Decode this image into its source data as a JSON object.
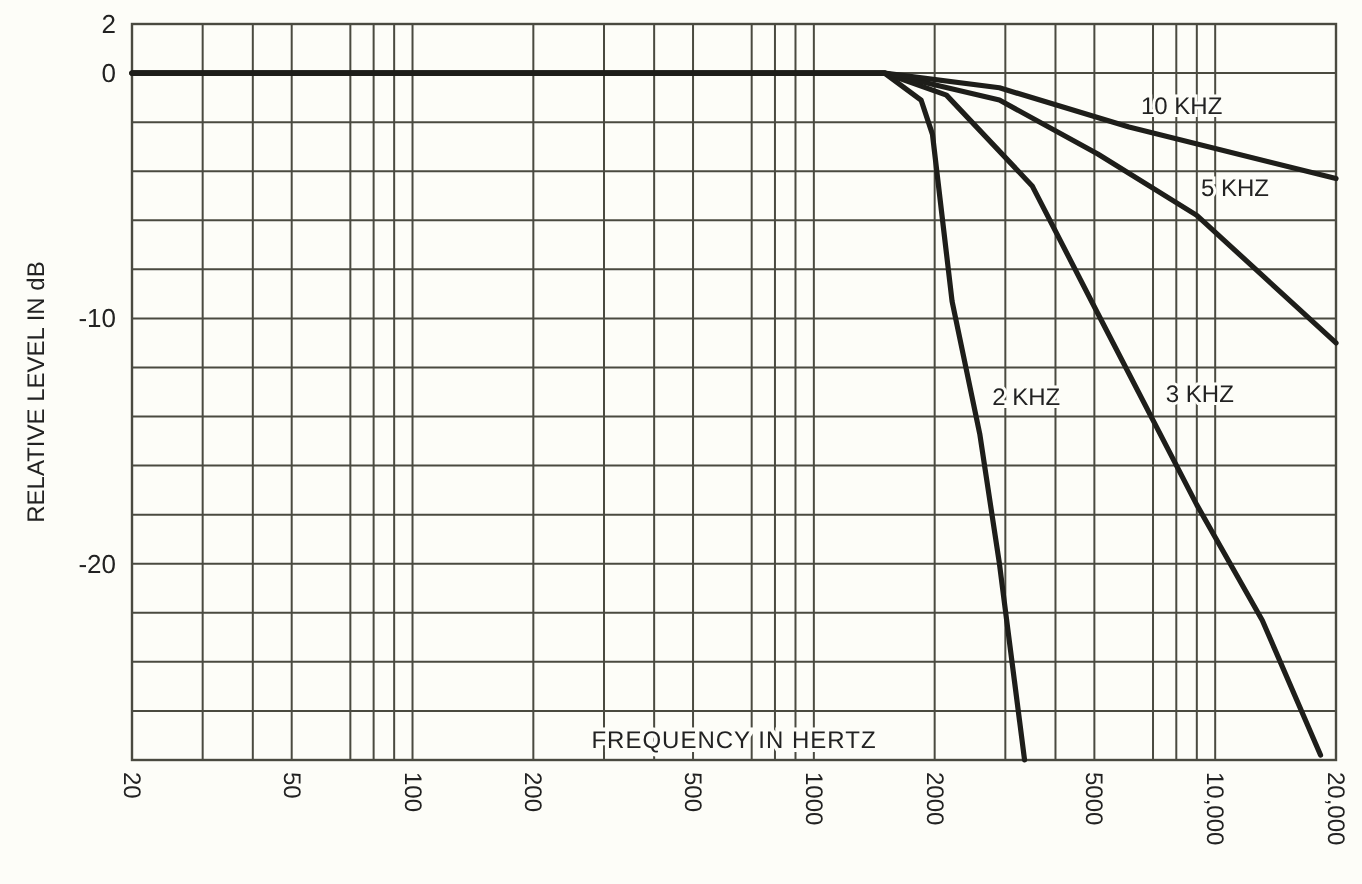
{
  "chart_data": {
    "type": "line",
    "xlabel": "FREQUENCY IN HERTZ",
    "ylabel": "RELATIVE LEVEL IN dB",
    "log": "x",
    "xlim": [
      20,
      20000
    ],
    "ylim": [
      -28,
      2
    ],
    "xticks": [
      20,
      {
        "value": 30,
        "label": null
      },
      {
        "value": 40,
        "label": null
      },
      50,
      {
        "value": 70,
        "label": null
      },
      {
        "value": 80,
        "label": null
      },
      {
        "value": 90,
        "label": null
      },
      100,
      200,
      {
        "value": 300,
        "label": null
      },
      {
        "value": 400,
        "label": null
      },
      500,
      {
        "value": 700,
        "label": null
      },
      {
        "value": 800,
        "label": null
      },
      {
        "value": 900,
        "label": null
      },
      1000,
      2000,
      {
        "value": 3000,
        "label": null
      },
      {
        "value": 4000,
        "label": null
      },
      5000,
      {
        "value": 7000,
        "label": null
      },
      {
        "value": 8000,
        "label": null
      },
      {
        "value": 9000,
        "label": null
      },
      {
        "value": 10000,
        "label": "10,000"
      },
      {
        "value": 20000,
        "label": "20,000"
      }
    ],
    "yticks": [
      2,
      0,
      {
        "value": -2,
        "label": null
      },
      {
        "value": -4,
        "label": null
      },
      {
        "value": -6,
        "label": null
      },
      {
        "value": -8,
        "label": null
      },
      -10,
      {
        "value": -12,
        "label": null
      },
      {
        "value": -14,
        "label": null
      },
      {
        "value": -16,
        "label": null
      },
      {
        "value": -18,
        "label": null
      },
      -20,
      {
        "value": -22,
        "label": null
      },
      {
        "value": -24,
        "label": null
      },
      {
        "value": -26,
        "label": null
      },
      {
        "value": -28,
        "label": null
      }
    ],
    "grid": true,
    "marker": "none",
    "line_style": "solid",
    "series": [
      {
        "name": "2 KHZ",
        "color": "#1e1e1a",
        "x": [
          20,
          1000,
          1500,
          1850,
          1975,
          2210,
          2590,
          2900,
          3350
        ],
        "values": [
          0,
          0,
          0,
          -1.1,
          -2.5,
          -9.3,
          -14.7,
          -20,
          -28
        ]
      },
      {
        "name": "3 KHZ",
        "color": "#1e1e1a",
        "x": [
          20,
          1000,
          1500,
          2140,
          3500,
          5100,
          9000,
          13100,
          18300
        ],
        "values": [
          0,
          0,
          0,
          -0.9,
          -4.6,
          -9.8,
          -17.6,
          -22.3,
          -27.8
        ]
      },
      {
        "name": "5 KHZ",
        "color": "#1e1e1a",
        "x": [
          20,
          1000,
          1500,
          2900,
          5100,
          9000,
          20000
        ],
        "values": [
          0,
          0,
          0,
          -1.1,
          -3.3,
          -5.8,
          -11
        ]
      },
      {
        "name": "10 KHZ",
        "color": "#1e1e1a",
        "x": [
          20,
          1000,
          1500,
          2900,
          6100,
          20000
        ],
        "values": [
          0,
          0,
          0,
          -0.6,
          -2.2,
          -4.3
        ]
      }
    ]
  }
}
